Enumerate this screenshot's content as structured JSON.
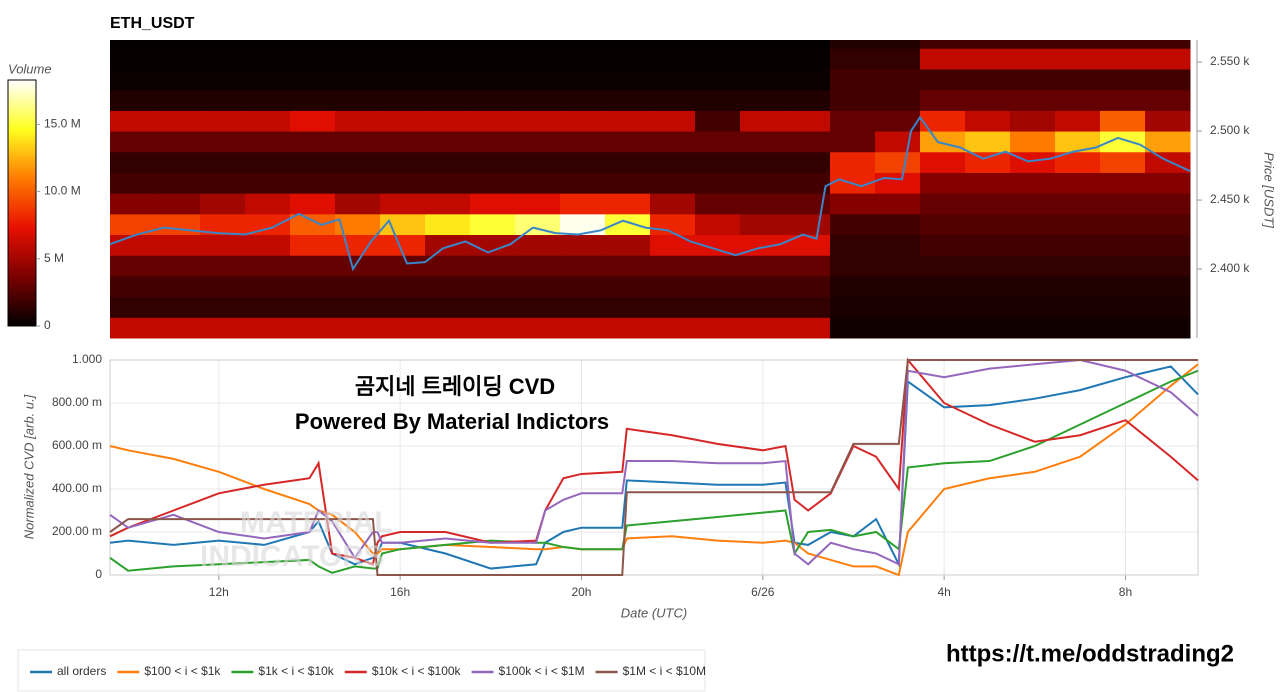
{
  "chart_data": [
    {
      "type": "heatmap",
      "title": "ETH_USDT",
      "ylabel": "Price [USDT]",
      "xlim": [
        9.6,
        33.6
      ],
      "ylim": [
        2350,
        2566
      ],
      "yticks": [
        {
          "value": 2400,
          "label": "2.400 k"
        },
        {
          "value": 2450,
          "label": "2.450 k"
        },
        {
          "value": 2500,
          "label": "2.500 k"
        },
        {
          "value": 2550,
          "label": "2.550 k"
        }
      ],
      "x_edges": [
        9.6,
        10.6,
        11.6,
        12.6,
        13.6,
        14.6,
        15.6,
        16.6,
        17.6,
        18.6,
        19.6,
        20.6,
        21.6,
        22.6,
        23.6,
        24.6,
        25.6,
        26.6,
        27.6,
        28.6,
        29.6,
        30.6,
        31.6,
        32.6,
        33.6
      ],
      "y_edges": [
        2350,
        2365,
        2380,
        2395,
        2410,
        2425,
        2440,
        2455,
        2470,
        2485,
        2500,
        2515,
        2530,
        2545,
        2560,
        2566
      ],
      "z": [
        [
          6000000,
          6000000,
          6000000,
          6000000,
          6000000,
          6000000,
          6000000,
          6000000,
          6000000,
          6000000,
          6000000,
          6000000,
          6000000,
          6000000,
          6000000,
          6000000,
          500000,
          500000,
          500000,
          500000,
          500000,
          500000,
          500000,
          500000
        ],
        [
          1500000,
          1500000,
          1500000,
          1500000,
          1500000,
          1500000,
          1500000,
          1500000,
          1500000,
          1500000,
          1500000,
          1500000,
          1500000,
          1500000,
          1500000,
          1500000,
          800000,
          800000,
          800000,
          800000,
          800000,
          800000,
          800000,
          800000
        ],
        [
          2000000,
          2000000,
          2000000,
          2000000,
          2000000,
          2000000,
          2000000,
          2000000,
          2000000,
          2000000,
          2000000,
          2000000,
          2000000,
          2000000,
          2000000,
          2000000,
          1000000,
          1000000,
          1000000,
          1000000,
          1000000,
          1000000,
          1000000,
          1000000
        ],
        [
          3000000,
          3000000,
          3000000,
          3000000,
          3000000,
          3000000,
          3000000,
          3000000,
          3000000,
          3000000,
          3000000,
          3000000,
          3000000,
          3000000,
          3000000,
          3000000,
          1500000,
          1500000,
          1500000,
          1500000,
          1500000,
          1500000,
          1500000,
          1500000
        ],
        [
          6000000,
          6000000,
          6000000,
          6000000,
          8000000,
          8000000,
          8000000,
          5000000,
          5000000,
          5000000,
          5000000,
          5000000,
          7000000,
          7000000,
          7000000,
          7000000,
          1500000,
          1500000,
          2000000,
          2000000,
          2000000,
          2000000,
          2000000,
          2000000
        ],
        [
          9000000,
          9000000,
          8000000,
          8000000,
          10000000,
          11000000,
          13000000,
          14000000,
          15000000,
          16000000,
          18000000,
          15000000,
          8000000,
          6000000,
          5000000,
          5000000,
          2000000,
          2000000,
          2500000,
          2500000,
          2500000,
          2500000,
          2500000,
          2500000
        ],
        [
          4000000,
          4000000,
          5000000,
          6000000,
          7000000,
          5000000,
          6000000,
          6000000,
          7000000,
          7000000,
          8000000,
          8000000,
          5000000,
          3000000,
          3000000,
          3000000,
          4000000,
          4000000,
          3000000,
          3000000,
          3000000,
          3000000,
          3000000,
          3000000
        ],
        [
          2000000,
          2000000,
          2000000,
          2000000,
          2000000,
          2000000,
          2000000,
          2000000,
          2000000,
          2000000,
          2000000,
          2000000,
          2000000,
          2000000,
          2000000,
          2000000,
          8000000,
          7000000,
          4000000,
          4000000,
          4000000,
          4000000,
          4000000,
          4000000
        ],
        [
          1500000,
          1500000,
          1500000,
          1500000,
          1500000,
          1500000,
          1500000,
          1500000,
          1500000,
          1500000,
          1500000,
          1500000,
          1500000,
          1500000,
          1500000,
          1500000,
          8000000,
          9000000,
          7000000,
          8000000,
          7000000,
          8000000,
          9000000,
          6000000
        ],
        [
          3000000,
          3000000,
          3000000,
          3000000,
          3000000,
          3000000,
          3000000,
          3000000,
          3000000,
          3000000,
          3000000,
          3000000,
          3000000,
          3000000,
          3000000,
          3000000,
          3000000,
          6000000,
          12000000,
          13000000,
          11000000,
          13000000,
          15000000,
          12000000
        ],
        [
          6000000,
          6000000,
          6000000,
          6000000,
          7000000,
          6000000,
          6000000,
          6000000,
          6000000,
          6000000,
          6000000,
          6000000,
          6000000,
          2000000,
          6000000,
          6000000,
          3000000,
          3000000,
          8000000,
          6000000,
          5000000,
          6000000,
          10000000,
          5000000
        ],
        [
          1000000,
          1000000,
          1000000,
          1000000,
          1000000,
          1000000,
          1000000,
          1000000,
          1000000,
          1000000,
          1000000,
          1000000,
          1000000,
          1000000,
          1000000,
          1000000,
          2000000,
          2000000,
          3000000,
          3000000,
          3000000,
          3000000,
          3000000,
          3000000
        ],
        [
          300000,
          300000,
          300000,
          300000,
          300000,
          300000,
          300000,
          300000,
          300000,
          300000,
          300000,
          300000,
          300000,
          300000,
          300000,
          300000,
          2000000,
          2000000,
          2000000,
          2000000,
          2000000,
          2000000,
          2000000,
          2000000
        ],
        [
          200000,
          200000,
          200000,
          200000,
          200000,
          200000,
          200000,
          200000,
          200000,
          200000,
          200000,
          200000,
          200000,
          200000,
          200000,
          200000,
          1500000,
          1500000,
          6000000,
          6000000,
          6000000,
          6000000,
          6000000,
          6000000
        ],
        [
          100000,
          100000,
          100000,
          100000,
          100000,
          100000,
          100000,
          100000,
          100000,
          100000,
          100000,
          100000,
          100000,
          100000,
          100000,
          100000,
          1000000,
          1000000,
          2000000,
          2000000,
          2000000,
          2000000,
          2000000,
          2000000
        ]
      ],
      "colorbar": {
        "title": "Volume",
        "zlim": [
          0,
          18300000
        ],
        "ticks": [
          0,
          {
            "value": 5000000,
            "label": "5 M"
          },
          {
            "value": 10000000,
            "label": "10.0 M"
          },
          {
            "value": 15000000,
            "label": "15.0 M"
          }
        ],
        "colors": [
          "#000000",
          "#7a0000",
          "#e81000",
          "#ff7a00",
          "#ffff20",
          "#ffffff"
        ]
      },
      "line": {
        "color": "#3a86c8",
        "x": [
          9.6,
          10.2,
          10.8,
          11.4,
          12,
          12.6,
          13.2,
          13.8,
          14.3,
          14.7,
          15,
          15.4,
          15.8,
          16.2,
          16.6,
          17,
          17.5,
          18,
          18.5,
          19,
          19.5,
          20,
          20.5,
          21,
          21.5,
          22,
          22.5,
          23,
          23.5,
          24,
          24.5,
          25,
          25.3,
          25.5,
          25.8,
          26.3,
          26.8,
          27.2,
          27.4,
          27.6,
          28,
          28.5,
          29,
          29.5,
          30,
          30.5,
          31,
          31.5,
          32,
          32.5,
          33,
          33.6
        ],
        "y": [
          2418,
          2425,
          2430,
          2428,
          2426,
          2425,
          2430,
          2440,
          2432,
          2436,
          2400,
          2420,
          2435,
          2404,
          2405,
          2415,
          2420,
          2412,
          2418,
          2430,
          2426,
          2425,
          2428,
          2435,
          2430,
          2428,
          2420,
          2415,
          2410,
          2415,
          2418,
          2425,
          2422,
          2460,
          2465,
          2460,
          2466,
          2465,
          2500,
          2510,
          2492,
          2488,
          2480,
          2485,
          2478,
          2480,
          2485,
          2488,
          2495,
          2490,
          2480,
          2471
        ]
      }
    },
    {
      "type": "line",
      "ylabel": "Normalized CVD [arb. u.]",
      "xlabel": "Date (UTC)",
      "grid": true,
      "legend": "bottom-left",
      "xlim": [
        9.6,
        33.6
      ],
      "ylim": [
        0,
        1
      ],
      "xticks": [
        {
          "value": 12,
          "label": "12h"
        },
        {
          "value": 16,
          "label": "16h"
        },
        {
          "value": 20,
          "label": "20h"
        },
        {
          "value": 24,
          "label": "6/26"
        },
        {
          "value": 28,
          "label": "4h"
        },
        {
          "value": 32,
          "label": "8h"
        }
      ],
      "yticks": [
        0,
        {
          "value": 0.2,
          "label": "200.00 m"
        },
        {
          "value": 0.4,
          "label": "400.00 m"
        },
        {
          "value": 0.6,
          "label": "600.00 m"
        },
        {
          "value": 0.8,
          "label": "800.00 m"
        },
        {
          "value": 1,
          "label": "1.000"
        }
      ],
      "x": [
        9.6,
        10,
        11,
        12,
        13,
        14,
        14.2,
        14.5,
        15,
        15.4,
        15.5,
        15.6,
        16,
        17,
        18,
        19,
        19.2,
        19.6,
        20,
        20.9,
        21,
        22,
        23,
        24,
        24.5,
        24.7,
        25,
        25.5,
        26,
        26.5,
        27,
        27.2,
        28,
        29,
        30,
        31,
        32,
        33,
        33.6
      ],
      "series": [
        {
          "name": "all orders",
          "color": "#1f77b4",
          "values": [
            0.15,
            0.16,
            0.14,
            0.16,
            0.14,
            0.2,
            0.25,
            0.1,
            0.05,
            0.08,
            0.1,
            0.15,
            0.15,
            0.1,
            0.03,
            0.05,
            0.15,
            0.2,
            0.22,
            0.22,
            0.44,
            0.43,
            0.42,
            0.42,
            0.43,
            0.15,
            0.14,
            0.2,
            0.18,
            0.26,
            0.05,
            0.9,
            0.78,
            0.79,
            0.82,
            0.86,
            0.92,
            0.97,
            0.84
          ]
        },
        {
          "name": "$100 < i < $1k",
          "color": "#ff7f0e",
          "values": [
            0.6,
            0.58,
            0.54,
            0.48,
            0.4,
            0.33,
            0.3,
            0.28,
            0.2,
            0.1,
            0.1,
            0.12,
            0.12,
            0.14,
            0.13,
            0.12,
            0.12,
            0.13,
            0.12,
            0.12,
            0.17,
            0.18,
            0.16,
            0.15,
            0.16,
            0.15,
            0.1,
            0.07,
            0.04,
            0.04,
            0,
            0.2,
            0.4,
            0.45,
            0.48,
            0.55,
            0.7,
            0.88,
            0.98
          ]
        },
        {
          "name": "$1k < i < $10k",
          "color": "#2ca02c",
          "values": [
            0.08,
            0.02,
            0.04,
            0.05,
            0.06,
            0.07,
            0.04,
            0.01,
            0.04,
            0.03,
            0.03,
            0.1,
            0.12,
            0.14,
            0.16,
            0.15,
            0.15,
            0.13,
            0.12,
            0.12,
            0.23,
            0.25,
            0.27,
            0.29,
            0.3,
            0.1,
            0.2,
            0.21,
            0.18,
            0.2,
            0.12,
            0.5,
            0.52,
            0.53,
            0.6,
            0.7,
            0.8,
            0.9,
            0.95
          ]
        },
        {
          "name": "$10k < i < $100k",
          "color": "#d62728",
          "values": [
            0.18,
            0.22,
            0.3,
            0.38,
            0.42,
            0.45,
            0.52,
            0.1,
            0.08,
            0.05,
            0.15,
            0.18,
            0.2,
            0.2,
            0.15,
            0.16,
            0.3,
            0.45,
            0.47,
            0.48,
            0.68,
            0.65,
            0.61,
            0.58,
            0.6,
            0.35,
            0.3,
            0.38,
            0.6,
            0.55,
            0.4,
            1,
            0.8,
            0.7,
            0.62,
            0.65,
            0.72,
            0.55,
            0.44
          ]
        },
        {
          "name": "$100k < i < $1M",
          "color": "#9467bd",
          "values": [
            0.28,
            0.22,
            0.28,
            0.2,
            0.17,
            0.2,
            0.3,
            0.25,
            0.08,
            0.2,
            0.2,
            0.15,
            0.15,
            0.17,
            0.15,
            0.15,
            0.3,
            0.35,
            0.38,
            0.38,
            0.53,
            0.53,
            0.52,
            0.52,
            0.53,
            0.1,
            0.05,
            0.15,
            0.12,
            0.1,
            0.05,
            0.95,
            0.92,
            0.96,
            0.98,
            1,
            0.95,
            0.85,
            0.74
          ]
        },
        {
          "name": "$1M < i < $10M",
          "color": "#8c564b",
          "values": [
            0.2,
            0.26,
            0.26,
            0.26,
            0.26,
            0.26,
            0.26,
            0.26,
            0.26,
            0.26,
            0,
            0,
            0,
            0,
            0,
            0,
            0,
            0,
            0,
            0,
            0.385,
            0.385,
            0.385,
            0.385,
            0.385,
            0.385,
            0.385,
            0.385,
            0.61,
            0.61,
            0.61,
            1,
            1,
            1,
            1,
            1,
            1,
            1,
            1
          ]
        }
      ]
    }
  ],
  "annotations": {
    "title_kr": "곰지네 트레이딩 CVD",
    "powered": "Powered By Material Indictors",
    "link": "https://t.me/oddstrading2",
    "watermark": [
      "MATERIAL",
      "INDICATORS"
    ]
  }
}
